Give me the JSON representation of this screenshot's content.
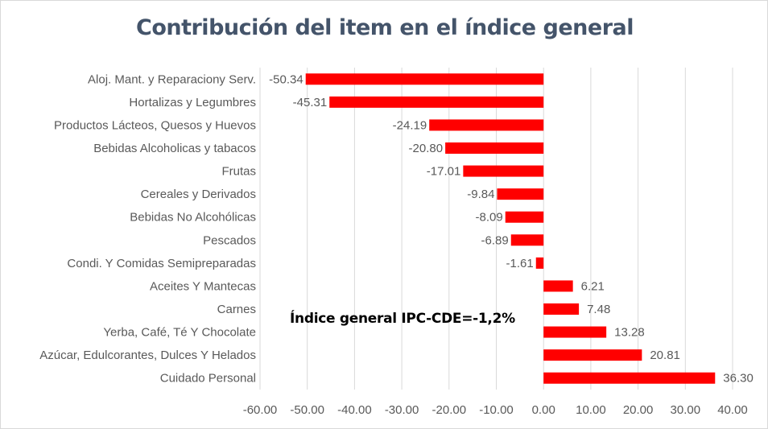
{
  "chart_data": {
    "type": "bar",
    "orientation": "horizontal",
    "title": "Contribución del item en el índice general",
    "annotation": "Índice general IPC-CDE=-1,2%",
    "categories": [
      "Aloj. Mant. y Reparaciony Serv.",
      "Hortalizas y Legumbres",
      "Productos Lácteos, Quesos y Huevos",
      "Bebidas Alcoholicas y tabacos",
      "Frutas",
      "Cereales y Derivados",
      "Bebidas No Alcohólicas",
      "Pescados",
      "Condi. Y Comidas Semipreparadas",
      "Aceites Y Mantecas",
      "Carnes",
      "Yerba, Café, Té Y Chocolate",
      "Azúcar, Edulcorantes, Dulces Y Helados",
      "Cuidado Personal"
    ],
    "values": [
      -50.34,
      -45.31,
      -24.19,
      -20.8,
      -17.01,
      -9.84,
      -8.09,
      -6.89,
      -1.61,
      6.21,
      7.48,
      13.28,
      20.81,
      36.3
    ],
    "data_labels": [
      "-50.34",
      "-45.31",
      "-24.19",
      "-20.80",
      "-17.01",
      "-9.84",
      "-8.09",
      "-6.89",
      "-1.61",
      "6.21",
      "7.48",
      "13.28",
      "20.81",
      "36.30"
    ],
    "xlim": [
      -60,
      40
    ],
    "xticks": [
      "-60.00",
      "-50.00",
      "-40.00",
      "-30.00",
      "-20.00",
      "-10.00",
      "0.00",
      "10.00",
      "20.00",
      "30.00",
      "40.00"
    ],
    "xtick_values": [
      -60,
      -50,
      -40,
      -30,
      -20,
      -10,
      0,
      10,
      20,
      30,
      40
    ],
    "grid": "vertical",
    "legend": "none",
    "colors": {
      "bar": "#ff0000",
      "title": "#44546a",
      "label": "#595959",
      "gridline": "#d9d9d9"
    }
  }
}
